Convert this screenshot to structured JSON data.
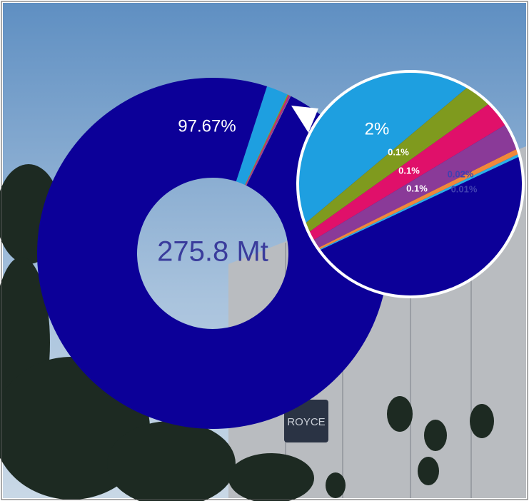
{
  "chart_data": {
    "type": "donut",
    "center_label": "275.8 Mt",
    "values": [
      2,
      0.1,
      0.1,
      0.1,
      0.02,
      0.01,
      97.67
    ],
    "value_labels": [
      "2%",
      "0.1%",
      "0.1%",
      "0.1%",
      "0.02%",
      "0.01%",
      "97.67%"
    ],
    "colors": [
      "#1e9fe0",
      "#7f9a1e",
      "#e0106a",
      "#8a3a98",
      "#f0883a",
      "#2ab0e8",
      "#0c0098"
    ]
  },
  "photo_sign": "ROYCE"
}
